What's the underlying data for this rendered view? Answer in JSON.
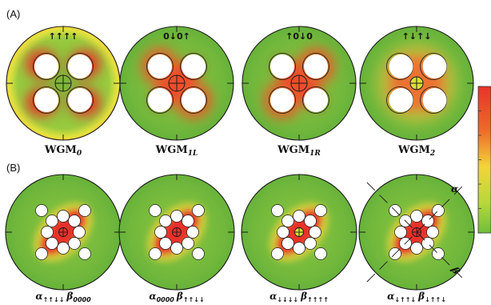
{
  "figure": {
    "panel_a_label": "(A)",
    "panel_b_label": "(B)"
  },
  "colors": {
    "field_low": "#6fbe3a",
    "field_mid": "#e8e03a",
    "field_high": "#e8332a",
    "hole_fill": "#ffffff",
    "outline": "#1a1a1a"
  },
  "panel_a": [
    {
      "spin": "↑↑↑↑",
      "mode_main": "WGM",
      "mode_sub": "0",
      "pattern": "ring"
    },
    {
      "spin": "0↓0↑",
      "mode_main": "WGM",
      "mode_sub": "1L",
      "pattern": "diag-left"
    },
    {
      "spin": "↑0↓0",
      "mode_main": "WGM",
      "mode_sub": "1R",
      "pattern": "diag-right"
    },
    {
      "spin": "↑↓↑↓",
      "mode_main": "WGM",
      "mode_sub": "2",
      "pattern": "center"
    }
  ],
  "panel_b": [
    {
      "alpha_sub": "↑↑↓↓",
      "beta_sub": "0000",
      "pattern": "diag-left"
    },
    {
      "alpha_sub": "0000",
      "beta_sub": "↑↑↓↓",
      "pattern": "diag-left"
    },
    {
      "alpha_sub": "↓↓↓↓",
      "beta_sub": "↑↑↑↑",
      "pattern": "diag-left"
    },
    {
      "alpha_sub": "↓↑↑↓",
      "beta_sub": "↓↑↑↓",
      "pattern": "diag-left"
    }
  ],
  "axes": {
    "alpha": "α",
    "beta": "β"
  }
}
